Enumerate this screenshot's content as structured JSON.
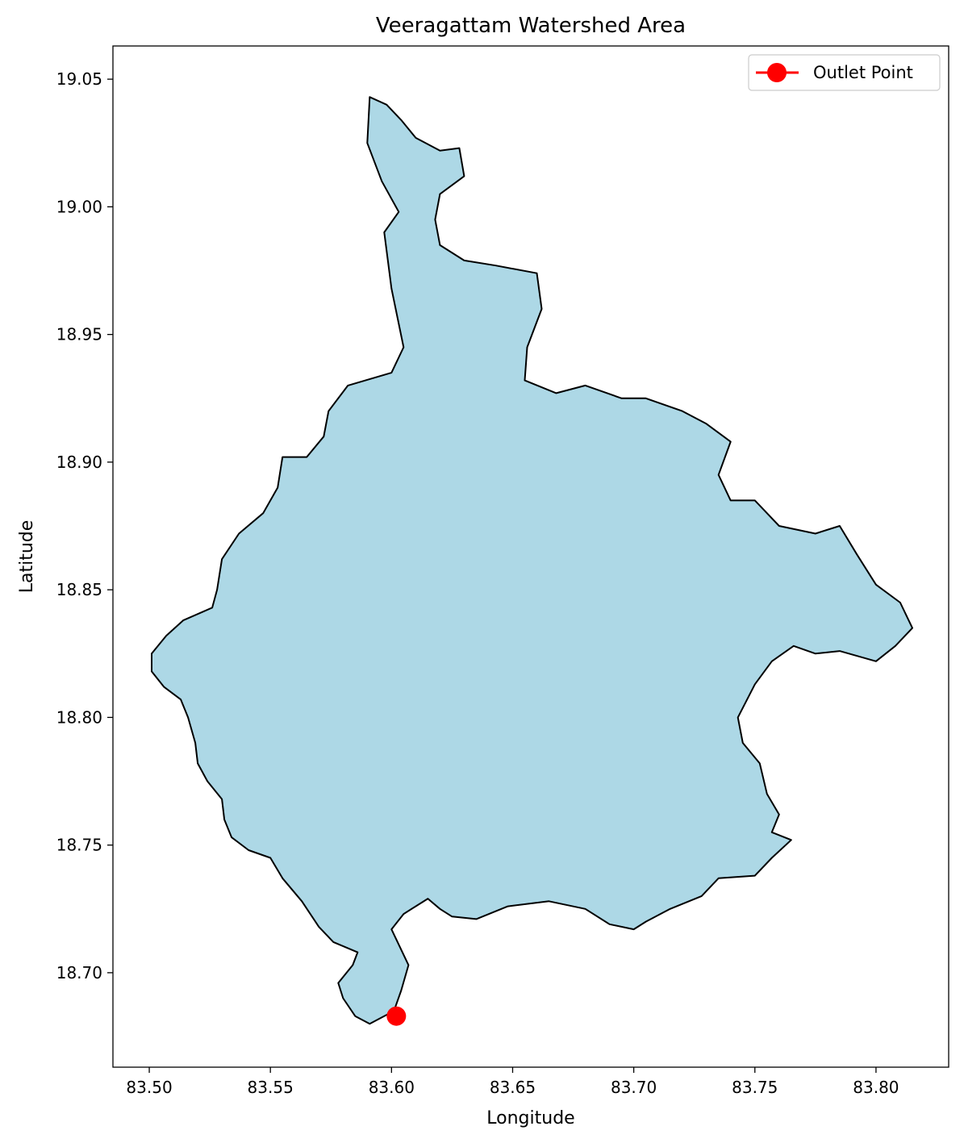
{
  "chart_data": {
    "type": "map",
    "title": "Veeragattam Watershed Area",
    "xlabel": "Longitude",
    "ylabel": "Latitude",
    "xlim": [
      83.485,
      83.83
    ],
    "ylim": [
      18.663,
      19.063
    ],
    "xticks": [
      83.5,
      83.55,
      83.6,
      83.65,
      83.7,
      83.75,
      83.8
    ],
    "xtick_labels": [
      "83.50",
      "83.55",
      "83.60",
      "83.65",
      "83.70",
      "83.75",
      "83.80"
    ],
    "yticks": [
      18.7,
      18.75,
      18.8,
      18.85,
      18.9,
      18.95,
      19.0,
      19.05
    ],
    "ytick_labels": [
      "18.70",
      "18.75",
      "18.80",
      "18.85",
      "18.90",
      "18.95",
      "19.00",
      "19.05"
    ],
    "grid": false,
    "legend_position": "top-right",
    "watershed": {
      "fill_color": "#add8e6",
      "edge_color": "#000000",
      "boundary": [
        [
          83.591,
          18.68
        ],
        [
          83.585,
          18.683
        ],
        [
          83.58,
          18.69
        ],
        [
          83.578,
          18.696
        ],
        [
          83.584,
          18.703
        ],
        [
          83.586,
          18.708
        ],
        [
          83.576,
          18.712
        ],
        [
          83.57,
          18.718
        ],
        [
          83.563,
          18.728
        ],
        [
          83.555,
          18.737
        ],
        [
          83.55,
          18.745
        ],
        [
          83.541,
          18.748
        ],
        [
          83.534,
          18.753
        ],
        [
          83.531,
          18.76
        ],
        [
          83.53,
          18.768
        ],
        [
          83.524,
          18.775
        ],
        [
          83.52,
          18.782
        ],
        [
          83.519,
          18.79
        ],
        [
          83.516,
          18.8
        ],
        [
          83.513,
          18.807
        ],
        [
          83.506,
          18.812
        ],
        [
          83.501,
          18.818
        ],
        [
          83.501,
          18.825
        ],
        [
          83.507,
          18.832
        ],
        [
          83.514,
          18.838
        ],
        [
          83.526,
          18.843
        ],
        [
          83.528,
          18.85
        ],
        [
          83.53,
          18.862
        ],
        [
          83.537,
          18.872
        ],
        [
          83.547,
          18.88
        ],
        [
          83.553,
          18.89
        ],
        [
          83.555,
          18.902
        ],
        [
          83.565,
          18.902
        ],
        [
          83.572,
          18.91
        ],
        [
          83.574,
          18.92
        ],
        [
          83.582,
          18.93
        ],
        [
          83.6,
          18.935
        ],
        [
          83.605,
          18.945
        ],
        [
          83.6,
          18.968
        ],
        [
          83.597,
          18.99
        ],
        [
          83.603,
          18.998
        ],
        [
          83.596,
          19.01
        ],
        [
          83.59,
          19.025
        ],
        [
          83.591,
          19.043
        ],
        [
          83.598,
          19.04
        ],
        [
          83.604,
          19.034
        ],
        [
          83.61,
          19.027
        ],
        [
          83.62,
          19.022
        ],
        [
          83.628,
          19.023
        ],
        [
          83.63,
          19.012
        ],
        [
          83.62,
          19.005
        ],
        [
          83.618,
          18.995
        ],
        [
          83.62,
          18.985
        ],
        [
          83.63,
          18.979
        ],
        [
          83.643,
          18.977
        ],
        [
          83.66,
          18.974
        ],
        [
          83.662,
          18.96
        ],
        [
          83.656,
          18.945
        ],
        [
          83.655,
          18.932
        ],
        [
          83.668,
          18.927
        ],
        [
          83.68,
          18.93
        ],
        [
          83.695,
          18.925
        ],
        [
          83.705,
          18.925
        ],
        [
          83.72,
          18.92
        ],
        [
          83.73,
          18.915
        ],
        [
          83.74,
          18.908
        ],
        [
          83.735,
          18.895
        ],
        [
          83.74,
          18.885
        ],
        [
          83.75,
          18.885
        ],
        [
          83.76,
          18.875
        ],
        [
          83.775,
          18.872
        ],
        [
          83.785,
          18.875
        ],
        [
          83.792,
          18.864
        ],
        [
          83.8,
          18.852
        ],
        [
          83.81,
          18.845
        ],
        [
          83.815,
          18.835
        ],
        [
          83.808,
          18.828
        ],
        [
          83.8,
          18.822
        ],
        [
          83.785,
          18.826
        ],
        [
          83.775,
          18.825
        ],
        [
          83.766,
          18.828
        ],
        [
          83.757,
          18.822
        ],
        [
          83.75,
          18.813
        ],
        [
          83.743,
          18.8
        ],
        [
          83.745,
          18.79
        ],
        [
          83.752,
          18.782
        ],
        [
          83.755,
          18.77
        ],
        [
          83.76,
          18.762
        ],
        [
          83.757,
          18.755
        ],
        [
          83.765,
          18.752
        ],
        [
          83.757,
          18.745
        ],
        [
          83.75,
          18.738
        ],
        [
          83.735,
          18.737
        ],
        [
          83.728,
          18.73
        ],
        [
          83.715,
          18.725
        ],
        [
          83.705,
          18.72
        ],
        [
          83.7,
          18.717
        ],
        [
          83.69,
          18.719
        ],
        [
          83.68,
          18.725
        ],
        [
          83.665,
          18.728
        ],
        [
          83.648,
          18.726
        ],
        [
          83.635,
          18.721
        ],
        [
          83.625,
          18.722
        ],
        [
          83.62,
          18.725
        ],
        [
          83.615,
          18.729
        ],
        [
          83.605,
          18.723
        ],
        [
          83.6,
          18.717
        ],
        [
          83.607,
          18.703
        ],
        [
          83.604,
          18.693
        ],
        [
          83.601,
          18.685
        ],
        [
          83.595,
          18.682
        ]
      ]
    },
    "outlet_point": {
      "label": "Outlet Point",
      "x": 83.602,
      "y": 18.683,
      "color": "#ff0000"
    }
  }
}
